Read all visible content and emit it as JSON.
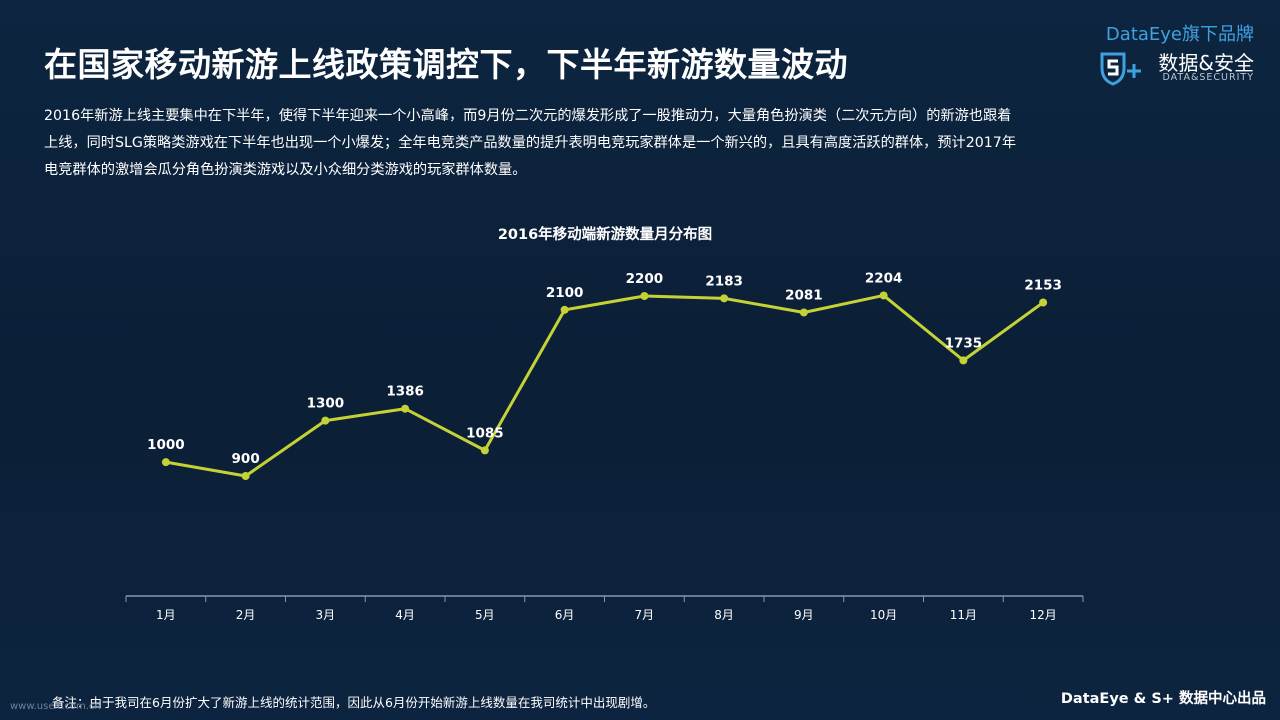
{
  "page": {
    "title": "在国家移动新游上线政策调控下，下半年新游数量波动",
    "description_lines": [
      "2016年新游上线主要集中在下半年，使得下半年迎来一个小高峰，而9月份二次元的爆发形成了一股推动力，大量角色扮演类（二次元方向）的新游也跟着",
      "上线，同时SLG策略类游戏在下半年也出现一个小爆发；全年电竞类产品数量的提升表明电竞玩家群体是一个新兴的，且具有高度活跃的群体，预计2017年",
      "电竞群体的激增会瓜分角色扮演类游戏以及小众细分类游戏的玩家群体数量。"
    ],
    "note": "备注：由于我司在6月份扩大了新游上线的统计范围，因此从6月份开始新游上线数量在我司统计中出现剧增。",
    "watermark": "www.useit.com.cn",
    "footer": "DataEye & S+ 数据中心出品"
  },
  "brand": {
    "top_line": "DataEye旗下品牌",
    "cn_name": "数据&安全",
    "en_name": "DATA&SECURITY",
    "logo_icon": "s-plus-shield-icon"
  },
  "colors": {
    "background": "#0c2138",
    "line": "#c5d236",
    "brand_blue": "#3fa2e0",
    "axis": "#8a97a6"
  },
  "chart_data": {
    "type": "line",
    "title": "2016年移动端新游数量月分布图",
    "categories": [
      "1月",
      "2月",
      "3月",
      "4月",
      "5月",
      "6月",
      "7月",
      "8月",
      "9月",
      "10月",
      "11月",
      "12月"
    ],
    "values": [
      1000,
      900,
      1300,
      1386,
      1085,
      2100,
      2200,
      2183,
      2081,
      2204,
      1735,
      2153
    ],
    "xlabel": "",
    "ylabel": "",
    "ylim": [
      0,
      2250
    ],
    "grid": false,
    "legend": "none",
    "data_labels": true
  }
}
